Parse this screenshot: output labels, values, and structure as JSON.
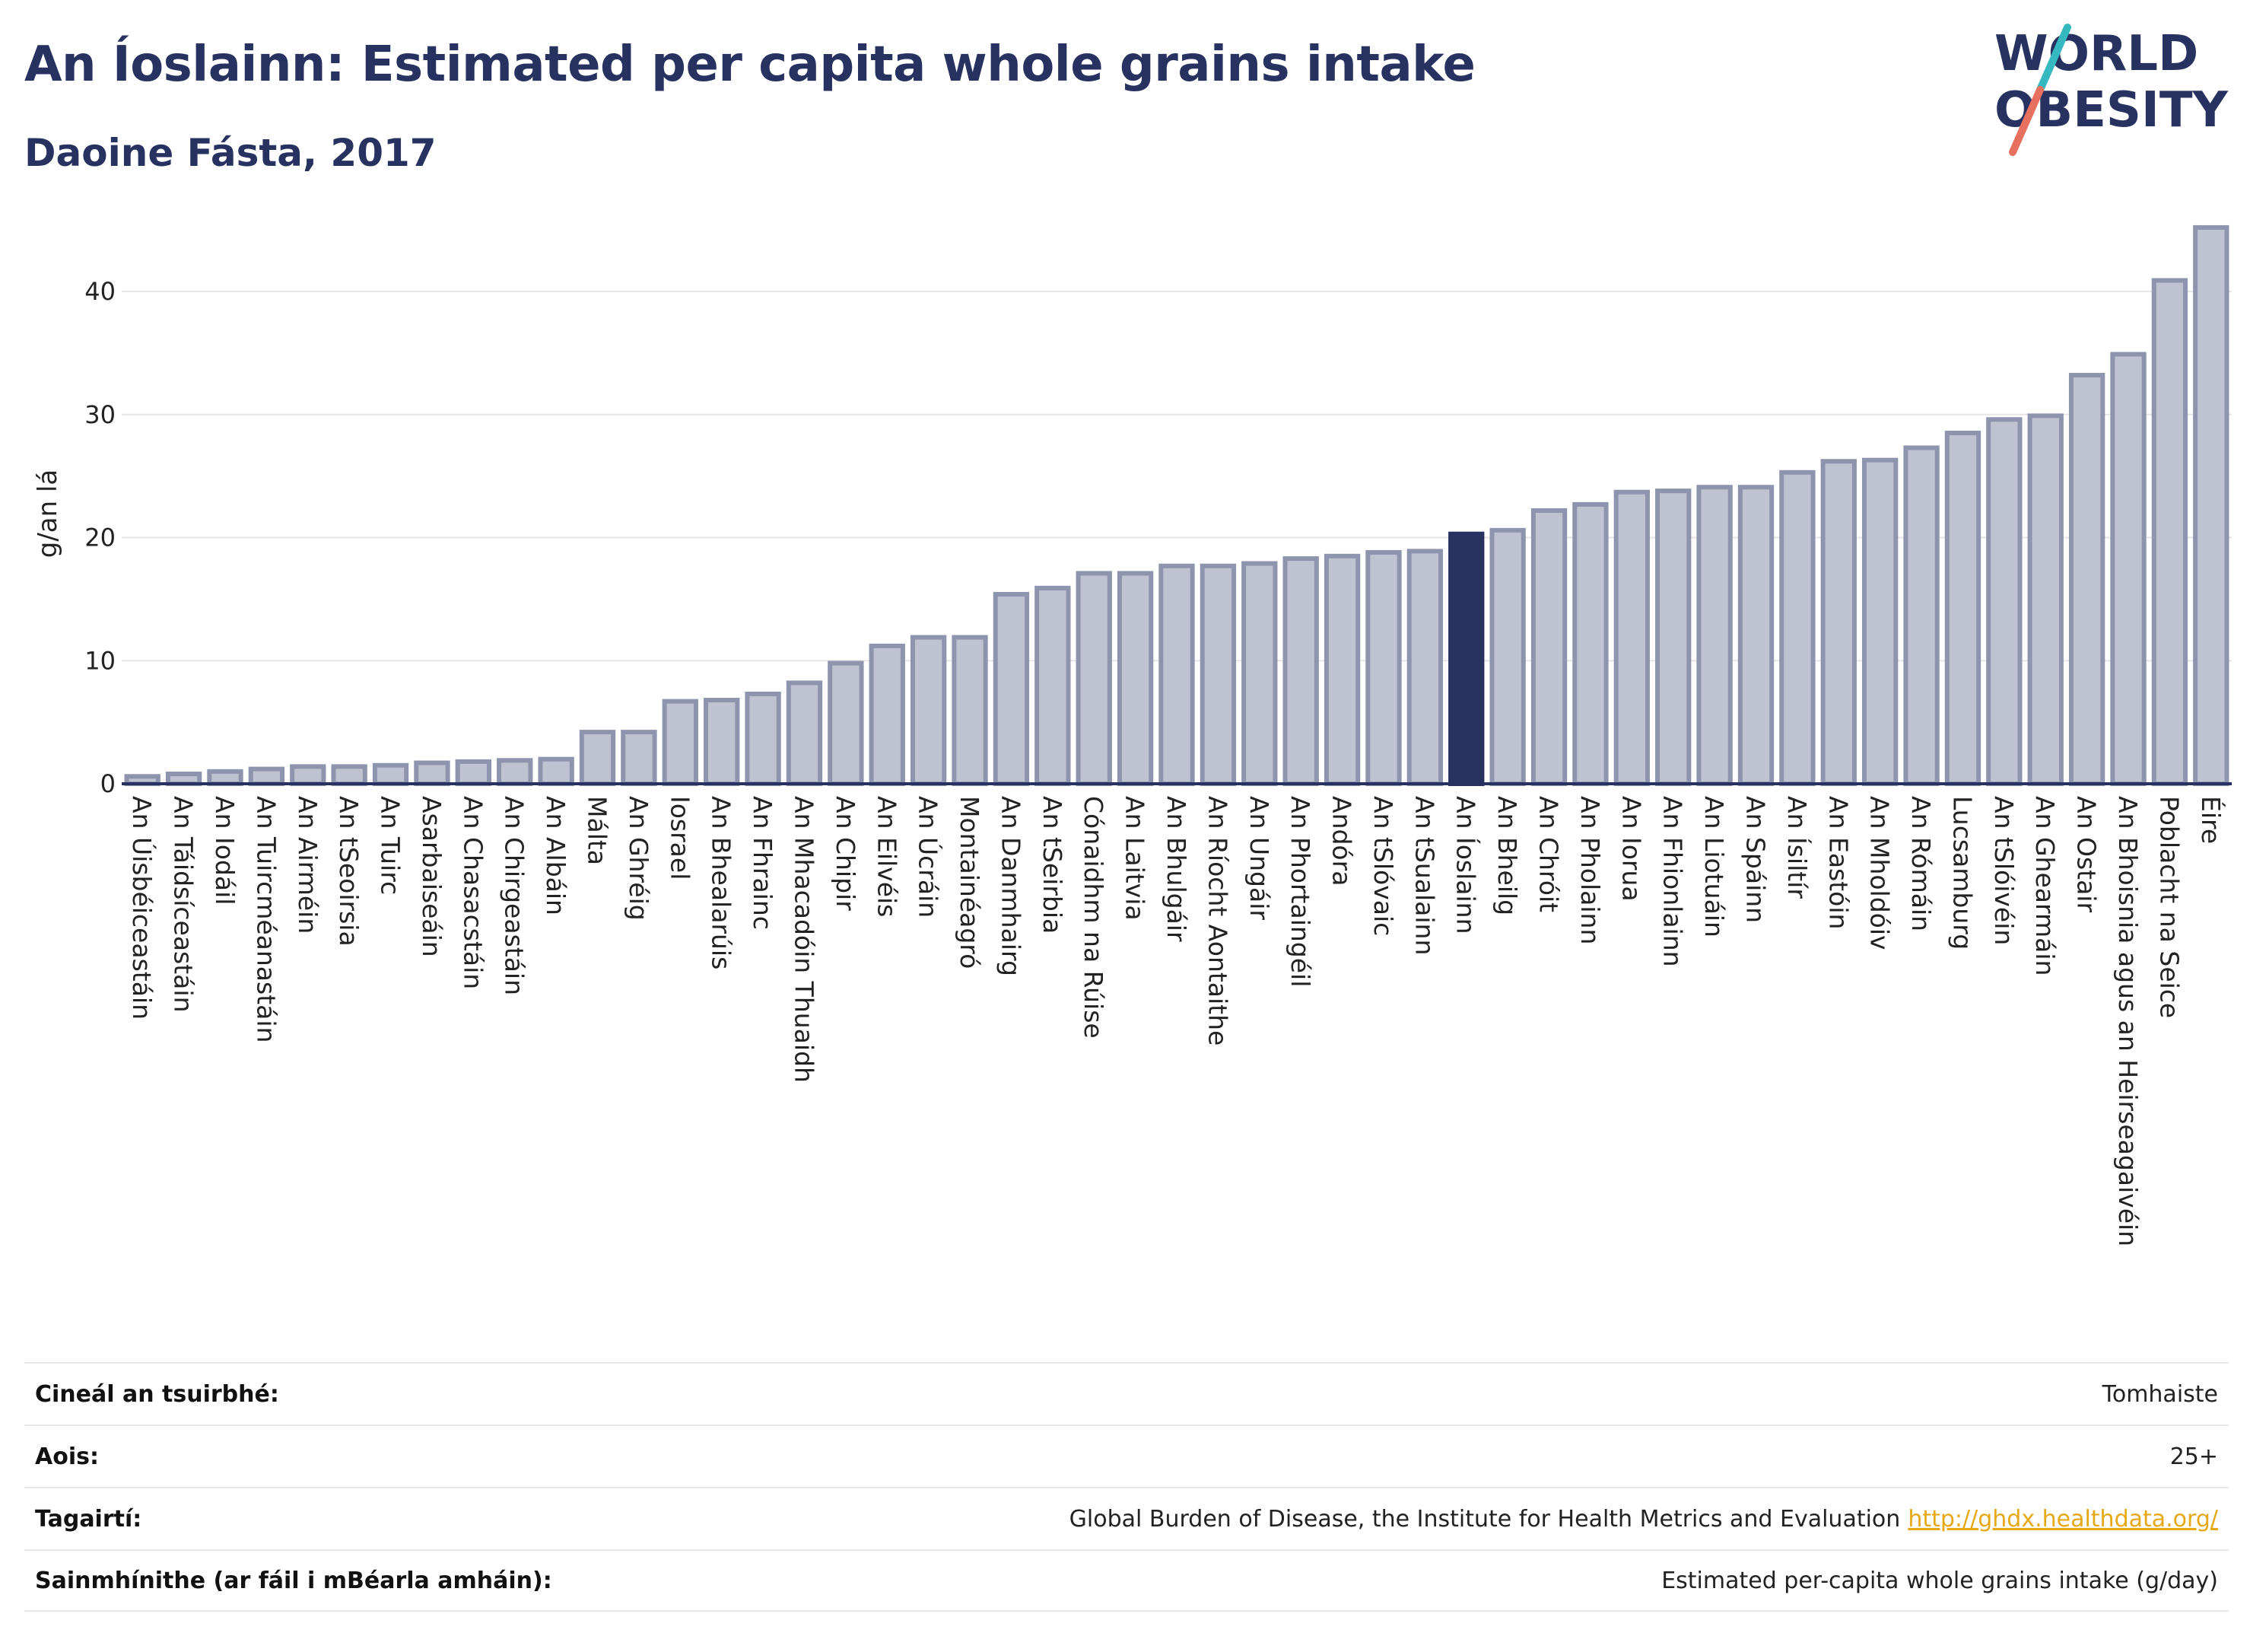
{
  "header": {
    "title": "An Íoslainn: Estimated per capita whole grains intake",
    "subtitle": "Daoine Fásta, 2017"
  },
  "logo": {
    "line1": "WORLD",
    "line2": "OBESITY",
    "colors": {
      "text": "#283261",
      "slash_teal": "#36b8c0",
      "slash_coral": "#e8705f"
    }
  },
  "colors": {
    "bar_fill": "#bfc3d1",
    "bar_stroke": "#8e94ad",
    "highlight": "#283261",
    "axis": "#283261",
    "grid": "#e6e6e6"
  },
  "chart_data": {
    "type": "bar",
    "ylabel": "g/an lá",
    "ylim": [
      0,
      46
    ],
    "yticks": [
      0,
      10,
      20,
      30,
      40
    ],
    "grid": true,
    "highlight": "An Íoslainn",
    "categories": [
      "An Úisbéiceastáin",
      "An Táidsíceastáin",
      "An Iodáil",
      "An Tuircméanastáin",
      "An Airméin",
      "An tSeoirsia",
      "An Tuirc",
      "Asarbaiseáin",
      "An Chasacstáin",
      "An Chirgeastáin",
      "An Albáin",
      "Málta",
      "An Ghréig",
      "Iosrael",
      "An Bhealarúis",
      "An Fhrainc",
      "An Mhacadóin Thuaidh",
      "An Chipir",
      "An Eilvéis",
      "An Úcráin",
      "Montainéagró",
      "An Danmhairg",
      "An tSeirbia",
      "Cónaidhm na Rúise",
      "An Laitvia",
      "An Bhulgáir",
      "An Ríocht Aontaithe",
      "An Ungáir",
      "An Phortaingéil",
      "Andóra",
      "An tSlóvaic",
      "An tSualainn",
      "An Íoslainn",
      "An Bheilg",
      "An Chróit",
      "An Pholainn",
      "An Iorua",
      "An Fhionlainn",
      "An Liotuáin",
      "An Spáinn",
      "An Ísiltír",
      "An Eastóin",
      "An Mholdóiv",
      "An Rómáin",
      "Lucsamburg",
      "An tSlóivéin",
      "An Ghearmáin",
      "An Ostair",
      "An Bhoisnia agus an Heirseagaivéin",
      "Poblacht na Seice",
      "Éire"
    ],
    "values": [
      0.6,
      0.8,
      1.0,
      1.2,
      1.4,
      1.4,
      1.5,
      1.7,
      1.8,
      1.9,
      2.0,
      4.2,
      4.2,
      6.7,
      6.8,
      7.3,
      8.2,
      9.8,
      11.2,
      11.9,
      11.9,
      15.4,
      15.9,
      17.1,
      17.1,
      17.7,
      17.7,
      17.9,
      18.3,
      18.5,
      18.8,
      18.9,
      20.3,
      20.6,
      22.2,
      22.7,
      23.7,
      23.8,
      24.1,
      24.1,
      25.3,
      26.2,
      26.3,
      27.3,
      28.5,
      29.6,
      29.9,
      33.2,
      34.9,
      40.9,
      45.2
    ]
  },
  "info": {
    "rows": [
      {
        "key": "Cineál an tsuirbhé:",
        "value": "Tomhaiste"
      },
      {
        "key": "Aois:",
        "value": "25+"
      },
      {
        "key": "Tagairtí:",
        "value": "Global Burden of Disease, the Institute for Health Metrics and Evaluation",
        "link": "http://ghdx.healthdata.org/"
      },
      {
        "key": "Sainmhínithe (ar fáil i mBéarla amháin):",
        "value": "Estimated per-capita whole grains intake (g/day)"
      }
    ]
  }
}
